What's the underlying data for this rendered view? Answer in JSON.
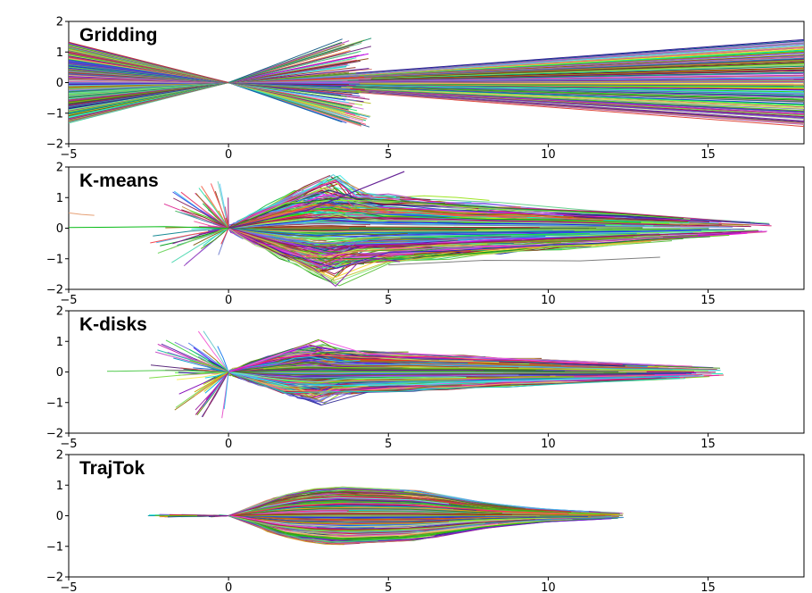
{
  "chart_data": [
    {
      "type": "line",
      "title": "Gridding",
      "xlim": [
        -5,
        18
      ],
      "ylim": [
        -2,
        2
      ],
      "xticks": [
        "−5",
        "0",
        "5",
        "10",
        "15"
      ],
      "yticks": [
        "2",
        "1",
        "0",
        "−1",
        "−2"
      ],
      "xtick_values": [
        -5,
        0,
        5,
        10,
        15
      ],
      "ytick_values": [
        2,
        1,
        0,
        -1,
        -2
      ],
      "pattern": "grid",
      "series_note": "hundreds of rays from origin on a regular angle/length grid, colors random",
      "envelope": {
        "x_min": -5,
        "x_max": 18,
        "y_abs_max_at_origin": 0.05,
        "y_abs_max": 1.45
      }
    },
    {
      "type": "line",
      "title": "K-means",
      "xlim": [
        -5,
        18
      ],
      "ylim": [
        -2,
        2
      ],
      "xticks": [
        "−5",
        "0",
        "5",
        "10",
        "15"
      ],
      "yticks": [
        "2",
        "1",
        "0",
        "−1",
        "−2"
      ],
      "xtick_values": [
        -5,
        0,
        5,
        10,
        15
      ],
      "ytick_values": [
        2,
        1,
        0,
        -1,
        -2
      ],
      "pattern": "cluster",
      "series_note": "trajectory cluster centers, spread widest near x=2–5, tail to x≈17.5",
      "envelope": {
        "x_min": -5,
        "x_max": 17.5,
        "peak_x": 3.5,
        "peak_y": 2.0
      }
    },
    {
      "type": "line",
      "title": "K-disks",
      "xlim": [
        -5,
        18
      ],
      "ylim": [
        -2,
        2
      ],
      "xticks": [
        "−5",
        "0",
        "5",
        "10",
        "15"
      ],
      "yticks": [
        "2",
        "1",
        "0",
        "−1",
        "−2"
      ],
      "xtick_values": [
        -5,
        0,
        5,
        10,
        15
      ],
      "ytick_values": [
        2,
        1,
        0,
        -1,
        -2
      ],
      "pattern": "cluster",
      "series_note": "trajectory cluster centers, fan peaks ~y=1.1 near x=2–4, tail to x≈16",
      "envelope": {
        "x_min": -3.8,
        "x_max": 16,
        "peak_x": 3,
        "peak_y": 1.1
      }
    },
    {
      "type": "line",
      "title": "TrajTok",
      "xlim": [
        -5,
        18
      ],
      "ylim": [
        -2,
        2
      ],
      "xticks": [
        "−5",
        "0",
        "5",
        "10",
        "15"
      ],
      "yticks": [
        "2",
        "1",
        "0",
        "−1",
        "−2"
      ],
      "xtick_values": [
        -5,
        0,
        5,
        10,
        15
      ],
      "ytick_values": [
        2,
        1,
        0,
        -1,
        -2
      ],
      "pattern": "smooth",
      "series_note": "smooth symmetric fan, max |y|≈0.95 near x=2–6, ends x≈12.4",
      "envelope": {
        "x_min": -2.6,
        "x_max": 12.4,
        "peak_x": 3.5,
        "peak_y": 0.95
      }
    }
  ],
  "palette_note": "random per-trajectory colors"
}
